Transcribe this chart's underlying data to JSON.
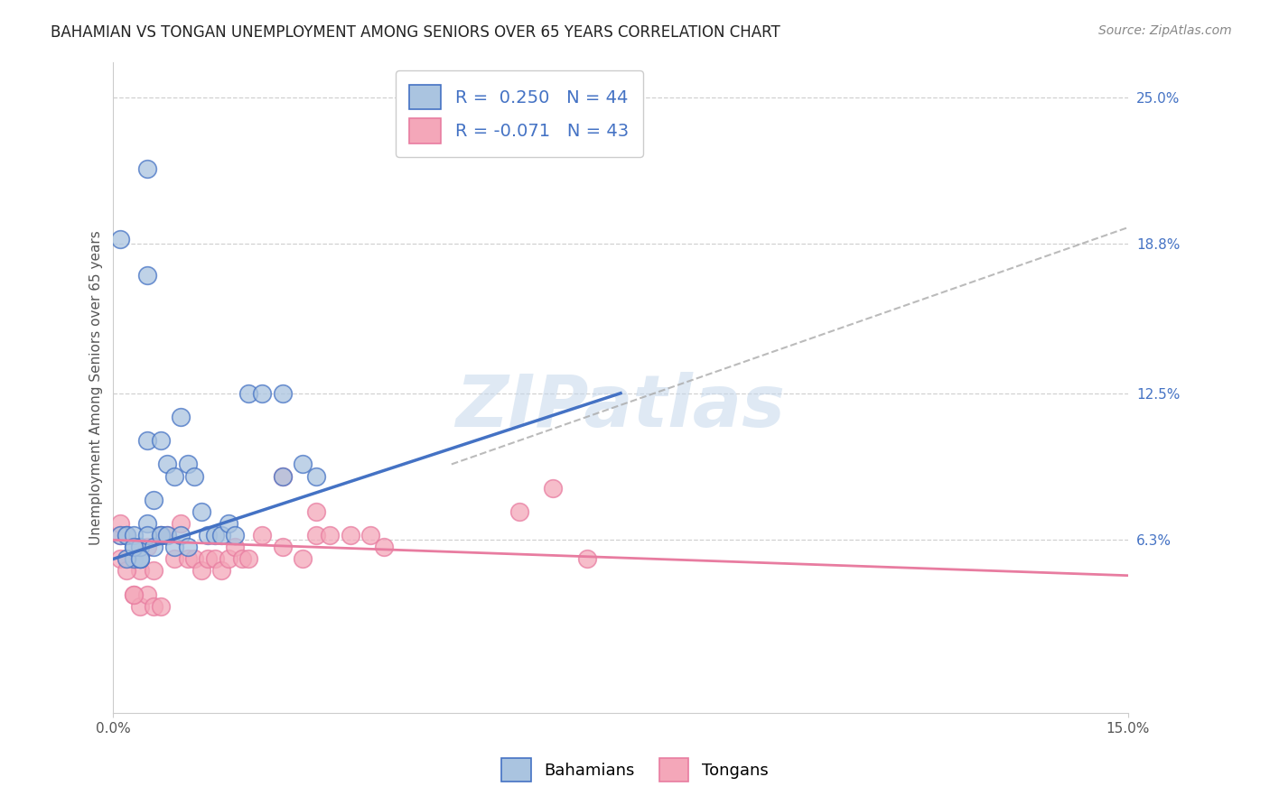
{
  "title": "BAHAMIAN VS TONGAN UNEMPLOYMENT AMONG SENIORS OVER 65 YEARS CORRELATION CHART",
  "source": "Source: ZipAtlas.com",
  "ylabel": "Unemployment Among Seniors over 65 years",
  "xlim": [
    0.0,
    0.15
  ],
  "ylim": [
    -0.01,
    0.265
  ],
  "xticks": [
    0.0,
    0.15
  ],
  "xticklabels": [
    "0.0%",
    "15.0%"
  ],
  "yticks": [
    0.063,
    0.125,
    0.188,
    0.25
  ],
  "yticklabels": [
    "6.3%",
    "12.5%",
    "18.8%",
    "25.0%"
  ],
  "watermark": "ZIPatlas",
  "legend_labels": [
    "Bahamians",
    "Tongans"
  ],
  "bahamian_color": "#aac4e0",
  "tongan_color": "#f4a7b9",
  "bahamian_line_color": "#4472c4",
  "tongan_line_color": "#e87ca0",
  "dash_line_color": "#aaaaaa",
  "bahamian_R": 0.25,
  "bahamian_N": 44,
  "tongan_R": -0.071,
  "tongan_N": 43,
  "grid_color": "#cccccc",
  "background_color": "#ffffff",
  "title_fontsize": 12,
  "axis_label_fontsize": 11,
  "tick_fontsize": 11,
  "legend_fontsize": 13,
  "bahamian_points_x": [
    0.005,
    0.005,
    0.007,
    0.008,
    0.009,
    0.01,
    0.011,
    0.012,
    0.013,
    0.014,
    0.015,
    0.016,
    0.017,
    0.018,
    0.002,
    0.003,
    0.004,
    0.005,
    0.006,
    0.007,
    0.02,
    0.022,
    0.025,
    0.028,
    0.003,
    0.004,
    0.001,
    0.002,
    0.003,
    0.004,
    0.005,
    0.006,
    0.007,
    0.008,
    0.009,
    0.01,
    0.011,
    0.002,
    0.003,
    0.004,
    0.025,
    0.03,
    0.005,
    0.001
  ],
  "bahamian_points_y": [
    0.22,
    0.105,
    0.105,
    0.095,
    0.09,
    0.115,
    0.095,
    0.09,
    0.075,
    0.065,
    0.065,
    0.065,
    0.07,
    0.065,
    0.065,
    0.055,
    0.055,
    0.07,
    0.08,
    0.065,
    0.125,
    0.125,
    0.125,
    0.095,
    0.06,
    0.055,
    0.065,
    0.065,
    0.065,
    0.06,
    0.065,
    0.06,
    0.065,
    0.065,
    0.06,
    0.065,
    0.06,
    0.055,
    0.06,
    0.055,
    0.09,
    0.09,
    0.175,
    0.19
  ],
  "tongan_points_x": [
    0.001,
    0.002,
    0.003,
    0.004,
    0.005,
    0.006,
    0.007,
    0.008,
    0.009,
    0.01,
    0.011,
    0.012,
    0.013,
    0.014,
    0.015,
    0.016,
    0.017,
    0.018,
    0.019,
    0.02,
    0.022,
    0.025,
    0.028,
    0.03,
    0.032,
    0.035,
    0.038,
    0.04,
    0.025,
    0.03,
    0.002,
    0.003,
    0.004,
    0.005,
    0.006,
    0.007,
    0.001,
    0.002,
    0.003,
    0.06,
    0.065,
    0.07,
    0.001
  ],
  "tongan_points_y": [
    0.065,
    0.055,
    0.055,
    0.05,
    0.06,
    0.05,
    0.065,
    0.065,
    0.055,
    0.07,
    0.055,
    0.055,
    0.05,
    0.055,
    0.055,
    0.05,
    0.055,
    0.06,
    0.055,
    0.055,
    0.065,
    0.06,
    0.055,
    0.065,
    0.065,
    0.065,
    0.065,
    0.06,
    0.09,
    0.075,
    0.065,
    0.04,
    0.035,
    0.04,
    0.035,
    0.035,
    0.055,
    0.05,
    0.04,
    0.075,
    0.085,
    0.055,
    0.07
  ],
  "blue_line_x0": 0.0,
  "blue_line_y0": 0.055,
  "blue_line_x1": 0.075,
  "blue_line_y1": 0.125,
  "pink_line_x0": 0.0,
  "pink_line_y0": 0.063,
  "pink_line_x1": 0.15,
  "pink_line_y1": 0.048,
  "dash_line_x0": 0.05,
  "dash_line_y0": 0.095,
  "dash_line_x1": 0.15,
  "dash_line_y1": 0.195
}
